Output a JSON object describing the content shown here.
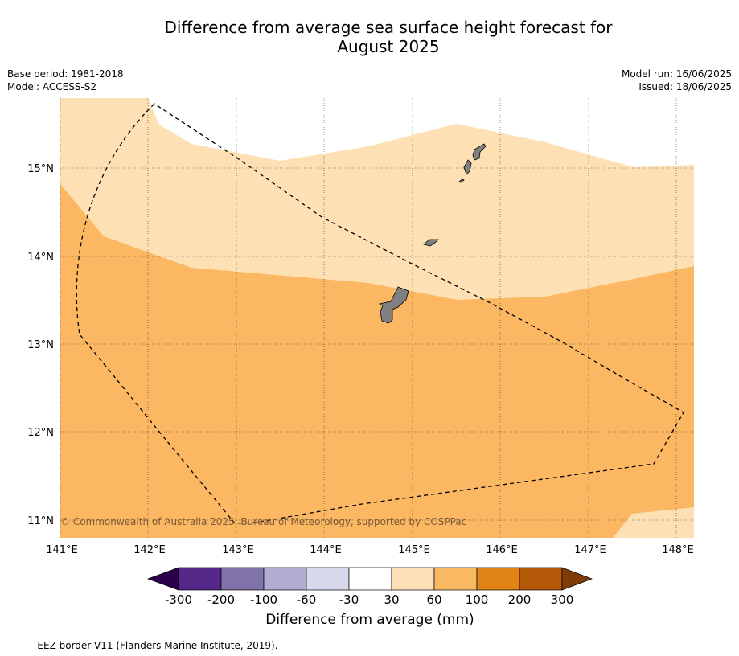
{
  "title": {
    "line1": "Difference from average sea surface height forecast for",
    "line2": "August 2025"
  },
  "meta": {
    "base_period": "Base period: 1981-2018",
    "model": "Model: ACCESS-S2",
    "model_run": "Model run: 16/06/2025",
    "issued": "Issued: 18/06/2025"
  },
  "map": {
    "lon_ticks": [
      "141°E",
      "142°E",
      "143°E",
      "144°E",
      "145°E",
      "146°E",
      "147°E",
      "148°E"
    ],
    "lat_ticks": [
      "15°N",
      "14°N",
      "13°N",
      "12°N",
      "11°N"
    ],
    "copyright": "© Commonwealth of Australia 2025, Bureau of Meteorology, supported by COSPPac",
    "colors": {
      "band_30_60": "#fde0b4",
      "band_60_100": "#fbb762",
      "land": "#808080",
      "gridline": "#000000",
      "eez": "#000000"
    }
  },
  "colorbar": {
    "title": "Difference from average (mm)",
    "labels": [
      "-300",
      "-200",
      "-100",
      "-60",
      "-30",
      "30",
      "60",
      "100",
      "200",
      "300"
    ],
    "colors": [
      "#2d004b",
      "#542788",
      "#8073ac",
      "#b2abd2",
      "#d8daeb",
      "#ffffff",
      "#fee0b6",
      "#fbb863",
      "#e08214",
      "#b35806",
      "#7f3b08"
    ]
  },
  "footnote": "--  --  -- EEZ border V11 (Flanders Marine Institute, 2019)."
}
